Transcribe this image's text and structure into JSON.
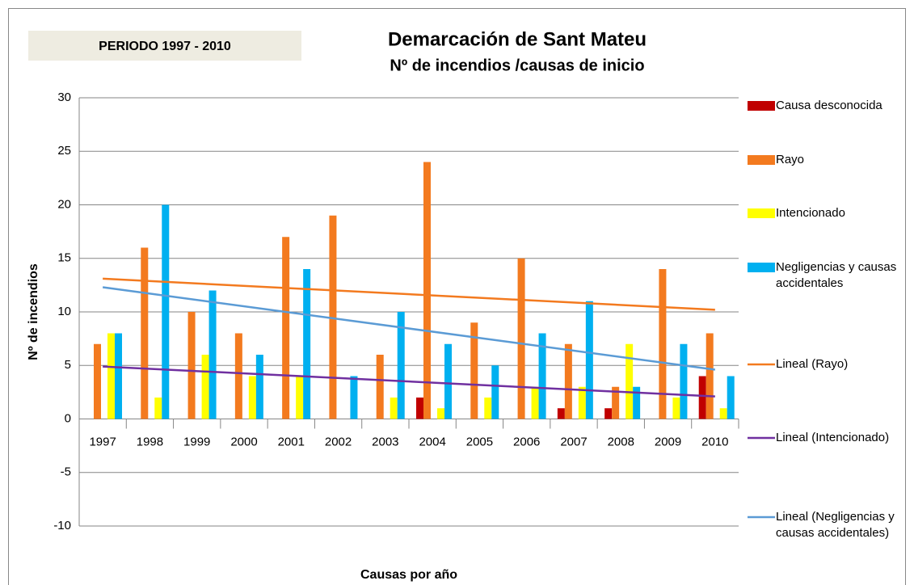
{
  "chart_data": {
    "type": "bar",
    "title": "Demarcación de Sant Mateu",
    "subtitle": "Nº de incendios /causas de inicio",
    "period_label": "PERIODO 1997 - 2010",
    "y_label": "Nº de incendios",
    "x_label": "Causas por año",
    "categories": [
      "1997",
      "1998",
      "1999",
      "2000",
      "2001",
      "2002",
      "2003",
      "2004",
      "2005",
      "2006",
      "2007",
      "2008",
      "2009",
      "2010"
    ],
    "series": [
      {
        "name": "Causa desconocida",
        "color": "#c00000",
        "values": [
          0,
          0,
          0,
          0,
          0,
          0,
          0,
          2,
          0,
          0,
          1,
          1,
          0,
          4
        ]
      },
      {
        "name": "Rayo",
        "color": "#f37a1f",
        "values": [
          7,
          16,
          10,
          8,
          17,
          19,
          6,
          24,
          9,
          15,
          7,
          3,
          14,
          8
        ]
      },
      {
        "name": "Intencionado",
        "color": "#ffff00",
        "values": [
          8,
          2,
          6,
          4,
          4,
          0,
          2,
          1,
          2,
          3,
          3,
          7,
          2,
          1
        ]
      },
      {
        "name": "Negligencias y causas accidentales",
        "color": "#00b0f0",
        "values": [
          8,
          20,
          12,
          6,
          14,
          4,
          10,
          7,
          5,
          8,
          11,
          3,
          7,
          4
        ]
      }
    ],
    "trendlines": [
      {
        "name": "Lineal (Rayo)",
        "color": "#f37a1f",
        "values": [
          13.1,
          10.2
        ]
      },
      {
        "name": "Lineal (Intencionado)",
        "color": "#7030a0",
        "values": [
          4.9,
          2.1
        ]
      },
      {
        "name": "Lineal (Negligencias y causas accidentales)",
        "color": "#5b9bd5",
        "values": [
          12.3,
          4.6
        ]
      }
    ],
    "ylim": [
      -10,
      30
    ],
    "yticks": [
      -10,
      -5,
      0,
      5,
      10,
      15,
      20,
      25,
      30
    ],
    "grid": true
  }
}
